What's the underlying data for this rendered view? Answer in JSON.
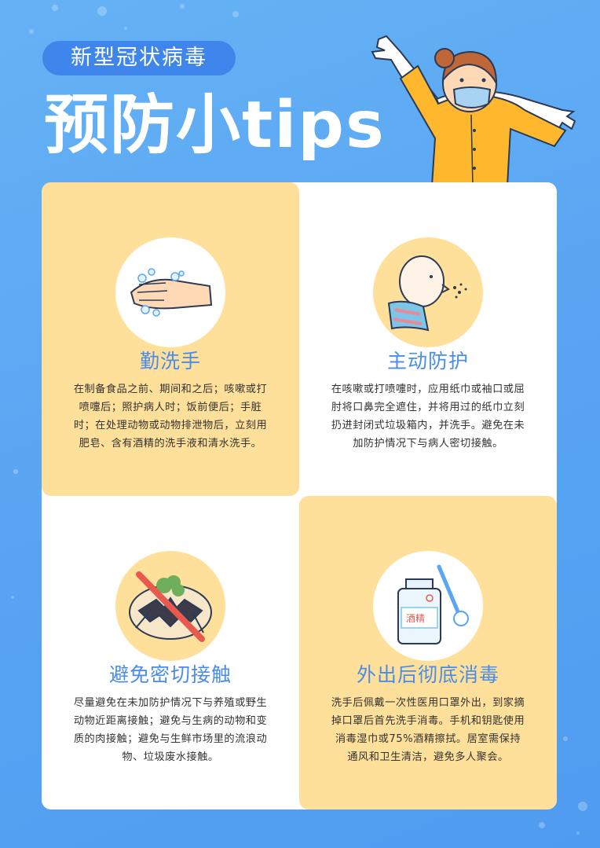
{
  "header": {
    "badge": "新型冠状病毒",
    "title": "预防小tips"
  },
  "tips": [
    {
      "title": "勤洗手",
      "text": "在制备食品之前、期间和之后；咳嗽或打喷嚏后；照护病人时；饭前便后；手脏时；在处理动物或动物排泄物后，立刻用肥皂、含有酒精的洗手液和清水洗手。",
      "icon": "hand-washing-icon"
    },
    {
      "title": "主动防护",
      "text": "在咳嗽或打喷嚏时，应用纸巾或袖口或屈肘将口鼻完全遮住，并将用过的纸巾立刻扔进封闭式垃圾箱内，并洗手。避免在未加防护情况下与病人密切接触。",
      "icon": "sneezing-person-icon"
    },
    {
      "title": "避免密切接触",
      "text": "尽量避免在未加防护情况下与养殖或野生动物近距离接触；避免与生病的动物和变质的肉接触；避免与生鲜市场里的流浪动物、垃圾废水接触。",
      "icon": "no-wild-animal-icon"
    },
    {
      "title": "外出后彻底消毒",
      "text": "洗手后佩戴一次性医用口罩外出，到家摘掉口罩后首先洗手消毒。手机和钥匙使用消毒湿巾或75%酒精擦拭。居室需保持通风和卫生清洁，避免多人聚会。",
      "icon": "alcohol-disinfect-icon",
      "label": "酒精"
    }
  ],
  "colors": {
    "background": "#5aa6f3",
    "badge": "#3f86ec",
    "yellow": "#ffe09a",
    "heading_blue": "#4a8ce8"
  }
}
